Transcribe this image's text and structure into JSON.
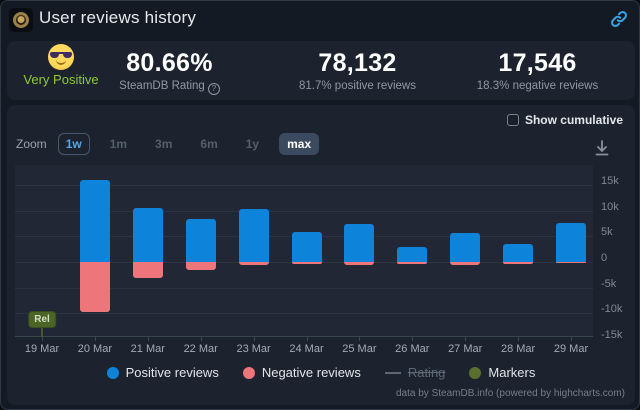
{
  "header": {
    "title": "User reviews history",
    "app_icon": "game-logo-gold-emblem",
    "link_icon_color": "#35a4e6"
  },
  "stats": {
    "summary_label": "Very Positive",
    "summary_color": "#8fc93a",
    "emoji": "smiling-face-with-sunglasses",
    "rating_value": "80.66%",
    "rating_label": "SteamDB Rating",
    "positive_value": "78,132",
    "positive_label": "81.7% positive reviews",
    "negative_value": "17,546",
    "negative_label": "18.3% negative reviews"
  },
  "controls": {
    "show_cumulative_label": "Show cumulative",
    "show_cumulative_checked": false,
    "zoom_label": "Zoom",
    "zoom_options": [
      {
        "label": "1w",
        "state": "selected"
      },
      {
        "label": "1m",
        "state": "dim"
      },
      {
        "label": "3m",
        "state": "dim"
      },
      {
        "label": "6m",
        "state": "dim"
      },
      {
        "label": "1y",
        "state": "dim"
      },
      {
        "label": "max",
        "state": "solid"
      }
    ]
  },
  "chart_data": {
    "type": "bar",
    "title": "User reviews history",
    "categories": [
      "19 Mar",
      "20 Mar",
      "21 Mar",
      "22 Mar",
      "23 Mar",
      "24 Mar",
      "25 Mar",
      "26 Mar",
      "27 Mar",
      "28 Mar",
      "29 Mar"
    ],
    "series": [
      {
        "name": "Positive reviews",
        "color": "#0d84d9",
        "values": [
          0,
          15900,
          10600,
          8400,
          10300,
          5800,
          7400,
          2900,
          5700,
          3500,
          7600
        ]
      },
      {
        "name": "Negative reviews",
        "color": "#ee767a",
        "values": [
          0,
          -9700,
          -3200,
          -1600,
          -600,
          -400,
          -600,
          -400,
          -500,
          -400,
          -150
        ]
      }
    ],
    "yticks": [
      {
        "label": "15k",
        "value": 15000
      },
      {
        "label": "10k",
        "value": 10000
      },
      {
        "label": "5k",
        "value": 5000
      },
      {
        "label": "0",
        "value": 0
      },
      {
        "label": "-5k",
        "value": -5000
      },
      {
        "label": "-10k",
        "value": -10000
      },
      {
        "label": "-15k",
        "value": -15000
      }
    ],
    "ylim": [
      -15000,
      18900
    ],
    "grid": true,
    "legend_position": "bottom",
    "legend": [
      {
        "label": "Positive reviews",
        "marker": "circle",
        "color": "#0d84d9",
        "enabled": true
      },
      {
        "label": "Negative reviews",
        "marker": "circle",
        "color": "#ee767a",
        "enabled": true
      },
      {
        "label": "Rating",
        "marker": "line",
        "color": "#5d6875",
        "enabled": false
      },
      {
        "label": "Markers",
        "marker": "circle",
        "color": "#5a6e2d",
        "enabled": true
      }
    ],
    "annotations": [
      {
        "label": "Rel",
        "category": "19 Mar",
        "category_index": 0
      }
    ]
  },
  "footer": {
    "credits": "data by SteamDB.info (powered by highcharts.com)"
  }
}
